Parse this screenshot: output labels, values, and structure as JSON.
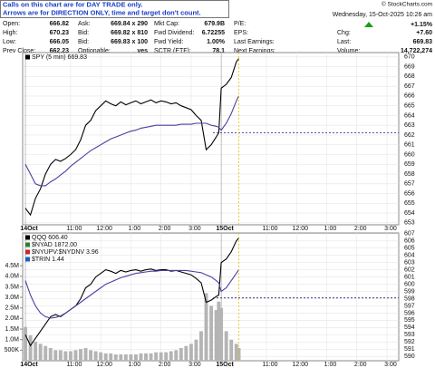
{
  "header": {
    "notice": [
      "Calls on this chart are for DAY TRADE only.",
      "Arrows are for DIRECTION ONLY, time and target don't count."
    ],
    "source": "© StockCharts.com",
    "date": "Wednesday, 15-Oct-2025 10:26 am",
    "quote": {
      "rows": [
        [
          [
            "Open:",
            "666.82"
          ],
          [
            "Ask:",
            "669.84 x 290"
          ],
          [
            "Mkt Cap:",
            "679.9B"
          ],
          [
            "P/E:"
          ]
        ],
        [
          [
            "High:",
            "670.23"
          ],
          [
            "Bid:",
            "669.82 x 810"
          ],
          [
            "Fwd Dividend:",
            "6.72255"
          ],
          [
            "EPS:"
          ]
        ],
        [
          [
            "Low:",
            "666.05"
          ],
          [
            "Bid:",
            "669.83 x 100"
          ],
          [
            "Fwd Yield:",
            "1.00%"
          ],
          [
            "Last Earnings:"
          ]
        ],
        [
          [
            "Prev Close:",
            "662.23"
          ],
          [
            "Optionable:",
            "yes"
          ],
          [
            "SCTR (ETF):",
            "78.1"
          ],
          [
            "Next Earnings:"
          ]
        ]
      ],
      "change_pct": "+1.15%",
      "right": [
        [
          "Chg:",
          "+7.60"
        ],
        [
          "Last:",
          "669.83"
        ],
        [
          "Volume:",
          "14,722,274"
        ]
      ]
    }
  },
  "chart_data": [
    {
      "type": "line",
      "x": [
        0,
        2,
        4,
        6,
        8,
        10,
        12,
        14,
        16,
        18,
        20,
        22,
        24,
        26,
        28,
        30,
        32,
        34,
        36,
        38,
        40,
        42,
        44,
        46,
        48,
        50,
        52,
        54,
        56,
        58,
        60,
        62,
        64,
        66,
        68,
        70,
        72,
        74,
        76,
        77,
        78,
        80,
        82,
        84,
        85
      ],
      "series": [
        {
          "name": "SPY (5 min) 669.83",
          "color": "#000000",
          "values": [
            654.5,
            653.8,
            655.5,
            656.5,
            658,
            659,
            659.5,
            659.3,
            659.6,
            660,
            660.5,
            661.5,
            663,
            663.5,
            664.5,
            665,
            665.5,
            665.2,
            665,
            665.4,
            665.1,
            665.3,
            665.5,
            665.2,
            665.4,
            665.6,
            665.3,
            665.5,
            665.4,
            665.2,
            665.3,
            665,
            664.8,
            664.6,
            664,
            663.5,
            660.5,
            661,
            661.8,
            662.23,
            666.8,
            667.2,
            667.9,
            669.5,
            669.83
          ]
        },
        {
          "color": "#4b3fa0",
          "values": [
            659,
            658,
            657,
            656.8,
            656.8,
            657.2,
            657.5,
            657.9,
            658.3,
            658.8,
            659.2,
            659.6,
            660,
            660.4,
            660.7,
            661,
            661.3,
            661.6,
            661.8,
            662,
            662.2,
            662.4,
            662.5,
            662.7,
            662.8,
            662.9,
            663,
            663,
            663,
            663,
            663,
            663.1,
            663.1,
            663.1,
            663.2,
            663.2,
            663.2,
            663,
            662.9,
            662.8,
            662.5,
            663.2,
            664.2,
            665.5,
            666
          ]
        }
      ],
      "reference_line": {
        "value": 662.23,
        "color": "#1a237e"
      },
      "xlim": [
        -1.1,
        148.7
      ],
      "xticks": [
        {
          "value": 0,
          "label": "14Oct"
        },
        {
          "value": 18,
          "label": "11:00"
        },
        {
          "value": 30,
          "label": "12:00"
        },
        {
          "value": 42,
          "label": "1:00"
        },
        {
          "value": 54,
          "label": "2:00"
        },
        {
          "value": 66,
          "label": "3:00"
        },
        {
          "value": 78,
          "label": "15Oct"
        },
        {
          "value": 96,
          "label": "11:00"
        },
        {
          "value": 108,
          "label": "12:00"
        },
        {
          "value": 120,
          "label": "1:00"
        },
        {
          "value": 132,
          "label": "2:00"
        },
        {
          "value": 144,
          "label": "3:00"
        }
      ],
      "ylim": [
        652.8,
        670.45
      ],
      "yticks": [
        653,
        654,
        655,
        656,
        657,
        658,
        659,
        660,
        661,
        662,
        663,
        664,
        665,
        666,
        667,
        668,
        669,
        670
      ],
      "grid": true
    },
    {
      "type": "line",
      "x": [
        0,
        2,
        4,
        6,
        8,
        10,
        12,
        14,
        16,
        18,
        20,
        22,
        24,
        26,
        28,
        30,
        32,
        34,
        36,
        38,
        40,
        42,
        44,
        46,
        48,
        50,
        52,
        54,
        56,
        58,
        60,
        62,
        64,
        66,
        68,
        70,
        72,
        74,
        76,
        77,
        78,
        80,
        82,
        84,
        85
      ],
      "series": [
        {
          "name": "Volume",
          "type": "bar",
          "axis": "y2",
          "color": "#b4b4b4",
          "values": [
            1.6,
            1.2,
            0.9,
            0.8,
            0.7,
            0.6,
            0.5,
            0.5,
            0.45,
            0.45,
            0.5,
            0.55,
            0.6,
            0.5,
            0.45,
            0.4,
            0.35,
            0.35,
            0.3,
            0.3,
            0.3,
            0.3,
            0.3,
            0.35,
            0.35,
            0.35,
            0.4,
            0.4,
            0.4,
            0.45,
            0.5,
            0.6,
            0.7,
            0.8,
            1.0,
            1.4,
            3.2,
            2.6,
            2.4,
            2.8,
            2.5,
            1.4,
            1.0,
            0.8,
            0.6
          ]
        },
        {
          "name": "QQQ 606.40",
          "color": "#000000",
          "values": [
            593,
            591.5,
            592.5,
            593.5,
            594.5,
            595.5,
            595.8,
            595.5,
            596,
            596.5,
            597,
            598,
            599.5,
            600,
            601,
            601.5,
            602,
            601.8,
            601.5,
            601.9,
            601.7,
            601.9,
            602,
            601.8,
            602,
            602.1,
            601.9,
            602,
            602,
            601.8,
            601.9,
            601.7,
            601.5,
            601.3,
            600.8,
            600.2,
            597.5,
            597.8,
            598.3,
            598.5,
            603,
            603.5,
            604.5,
            606,
            606.4
          ]
        },
        {
          "color": "#4b3fa0",
          "values": [
            600.5,
            598.5,
            597,
            596,
            595.5,
            595.3,
            595.4,
            595.6,
            596,
            596.5,
            597,
            597.5,
            598,
            598.5,
            599,
            599.5,
            600,
            600.3,
            600.6,
            600.9,
            601.1,
            601.3,
            601.5,
            601.6,
            601.7,
            601.8,
            601.8,
            601.9,
            601.9,
            601.9,
            601.9,
            601.9,
            601.9,
            601.8,
            601.7,
            601.6,
            601.3,
            601,
            600.5,
            600.2,
            599,
            599.5,
            600.5,
            601.5,
            602
          ]
        }
      ],
      "overlays": [
        {
          "name": "$NYAD 1872.00",
          "color": "#2e7d32"
        },
        {
          "name": "$NYUPV:$NYDNV 3.96",
          "color": "#c62828"
        },
        {
          "name": "$TRIN 1.44",
          "color": "#1565c0"
        }
      ],
      "reference_line": {
        "value": 598.1,
        "color": "#1a237e"
      },
      "xlim": [
        -1.1,
        148.7
      ],
      "xticks": [
        {
          "value": 0,
          "label": "14Oct"
        },
        {
          "value": 18,
          "label": "11:00"
        },
        {
          "value": 30,
          "label": "12:00"
        },
        {
          "value": 42,
          "label": "1:00"
        },
        {
          "value": 54,
          "label": "2:00"
        },
        {
          "value": 66,
          "label": "3:00"
        },
        {
          "value": 78,
          "label": "15Oct"
        },
        {
          "value": 96,
          "label": "11:00"
        },
        {
          "value": 108,
          "label": "12:00"
        },
        {
          "value": 120,
          "label": "1:00"
        },
        {
          "value": 132,
          "label": "2:00"
        },
        {
          "value": 144,
          "label": "3:00"
        }
      ],
      "ylim": [
        589.4,
        607.1
      ],
      "yticks": [
        590,
        591,
        592,
        593,
        594,
        595,
        596,
        597,
        598,
        599,
        600,
        601,
        602,
        603,
        604,
        605,
        606,
        607
      ],
      "y2lim": [
        0,
        6.05
      ],
      "y2ticks": [
        {
          "value": 0.5,
          "label": "500K"
        },
        {
          "value": 1,
          "label": "1.0M"
        },
        {
          "value": 1.5,
          "label": "1.5M"
        },
        {
          "value": 2,
          "label": "2.0M"
        },
        {
          "value": 2.5,
          "label": "2.5M"
        },
        {
          "value": 3,
          "label": "3.0M"
        },
        {
          "value": 3.5,
          "label": "3.5M"
        },
        {
          "value": 4,
          "label": "4.0M"
        },
        {
          "value": 4.5,
          "label": "4.5M"
        }
      ],
      "grid": true
    }
  ]
}
